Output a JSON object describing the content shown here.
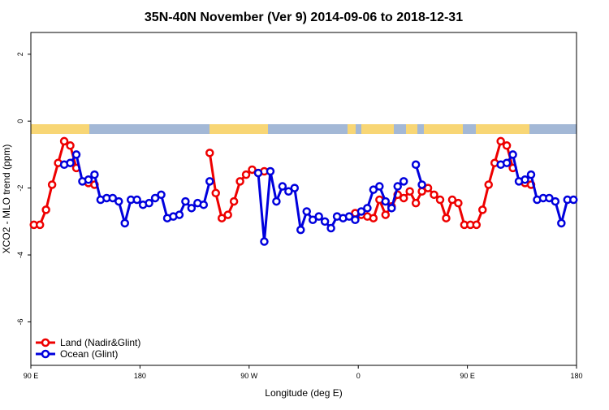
{
  "chart_data": {
    "type": "line",
    "title": "35N-40N November (Ver 9)   2014-09-06 to 2018-12-31",
    "x_label": "Longitude (deg E)",
    "y_label": "XCO2 - MLO trend (ppm)",
    "xlim": [
      90,
      540
    ],
    "ylim": [
      -7.3,
      2.65
    ],
    "xticks": [
      {
        "value": 90,
        "label": "90 E"
      },
      180,
      {
        "value": 270,
        "label": "90 W"
      },
      {
        "value": 360,
        "label": "0"
      },
      {
        "value": 450,
        "label": "90 E"
      },
      {
        "value": 540,
        "label": "180"
      }
    ],
    "yticks": [
      2,
      0,
      -2,
      -4,
      -6
    ],
    "legend": "bottom-left",
    "x": [
      92.5,
      97.5,
      102.5,
      107.5,
      112.5,
      117.5,
      122.5,
      127.5,
      132.5,
      137.5,
      142.5,
      147.5,
      152.5,
      157.5,
      162.5,
      167.5,
      172.5,
      177.5,
      182.5,
      187.5,
      192.5,
      197.5,
      202.5,
      207.5,
      212.5,
      217.5,
      222.5,
      227.5,
      232.5,
      237.5,
      242.5,
      247.5,
      252.5,
      257.5,
      262.5,
      267.5,
      272.5,
      277.5,
      282.5,
      287.5,
      292.5,
      297.5,
      302.5,
      307.5,
      312.5,
      317.5,
      322.5,
      327.5,
      332.5,
      337.5,
      342.5,
      347.5,
      352.5,
      357.5,
      362.5,
      367.5,
      372.5,
      377.5,
      382.5,
      387.5,
      392.5,
      397.5,
      402.5,
      407.5,
      412.5,
      417.5,
      422.5,
      427.5,
      432.5,
      437.5,
      442.5,
      447.5,
      452.5,
      457.5,
      462.5,
      467.5,
      472.5,
      477.5,
      482.5,
      487.5,
      492.5,
      497.5,
      502.5,
      507.5,
      512.5,
      517.5,
      522.5,
      527.5,
      532.5,
      537.5
    ],
    "series": [
      {
        "name": "Land (Nadir&Glint)",
        "color": "#ee0000",
        "values": [
          -3.1,
          -3.1,
          -2.65,
          -1.9,
          -1.25,
          -0.6,
          -0.73,
          -1.4,
          null,
          -1.85,
          -1.9,
          null,
          null,
          null,
          null,
          null,
          null,
          null,
          null,
          null,
          null,
          null,
          null,
          null,
          null,
          null,
          null,
          null,
          null,
          -0.95,
          -2.15,
          -2.9,
          -2.8,
          -2.4,
          -1.8,
          -1.6,
          -1.45,
          -1.55,
          -1.5,
          null,
          null,
          null,
          null,
          null,
          null,
          null,
          null,
          null,
          null,
          null,
          null,
          null,
          null,
          -2.75,
          -2.8,
          -2.85,
          -2.9,
          -2.35,
          -2.8,
          -2.55,
          -2.2,
          -2.3,
          -2.1,
          -2.45,
          -2.1,
          -2.0,
          -2.2,
          -2.35,
          -2.9,
          -2.35,
          -2.45,
          -3.1,
          -3.1,
          -3.1,
          -2.65,
          -1.9,
          -1.25,
          -0.6,
          -0.73,
          -1.4,
          null,
          -1.85,
          -1.9,
          null,
          null,
          null,
          null,
          null,
          null,
          null
        ]
      },
      {
        "name": "Ocean (Glint)",
        "color": "#0000dd",
        "values": [
          null,
          null,
          null,
          null,
          null,
          -1.3,
          -1.25,
          -1.0,
          -1.8,
          -1.75,
          -1.6,
          -2.35,
          -2.3,
          -2.3,
          -2.4,
          -3.05,
          -2.35,
          -2.35,
          -2.5,
          -2.45,
          -2.3,
          -2.2,
          -2.9,
          -2.85,
          -2.8,
          -2.4,
          -2.6,
          -2.45,
          -2.5,
          -1.8,
          null,
          null,
          null,
          null,
          null,
          null,
          null,
          -1.55,
          -3.6,
          -1.5,
          -2.4,
          -1.95,
          -2.1,
          -2.0,
          -3.25,
          -2.7,
          -2.95,
          -2.85,
          -3.0,
          -3.2,
          -2.85,
          -2.9,
          -2.85,
          -2.95,
          -2.7,
          -2.6,
          -2.05,
          -1.95,
          -2.4,
          -2.6,
          -1.95,
          -1.8,
          null,
          -1.3,
          -1.9,
          null,
          null,
          null,
          null,
          null,
          null,
          null,
          null,
          null,
          null,
          null,
          null,
          -1.3,
          -1.25,
          -1.0,
          -1.8,
          -1.75,
          -1.6,
          -2.35,
          -2.3,
          -2.3,
          -2.4,
          -3.05,
          -2.35,
          -2.35
        ]
      }
    ]
  }
}
